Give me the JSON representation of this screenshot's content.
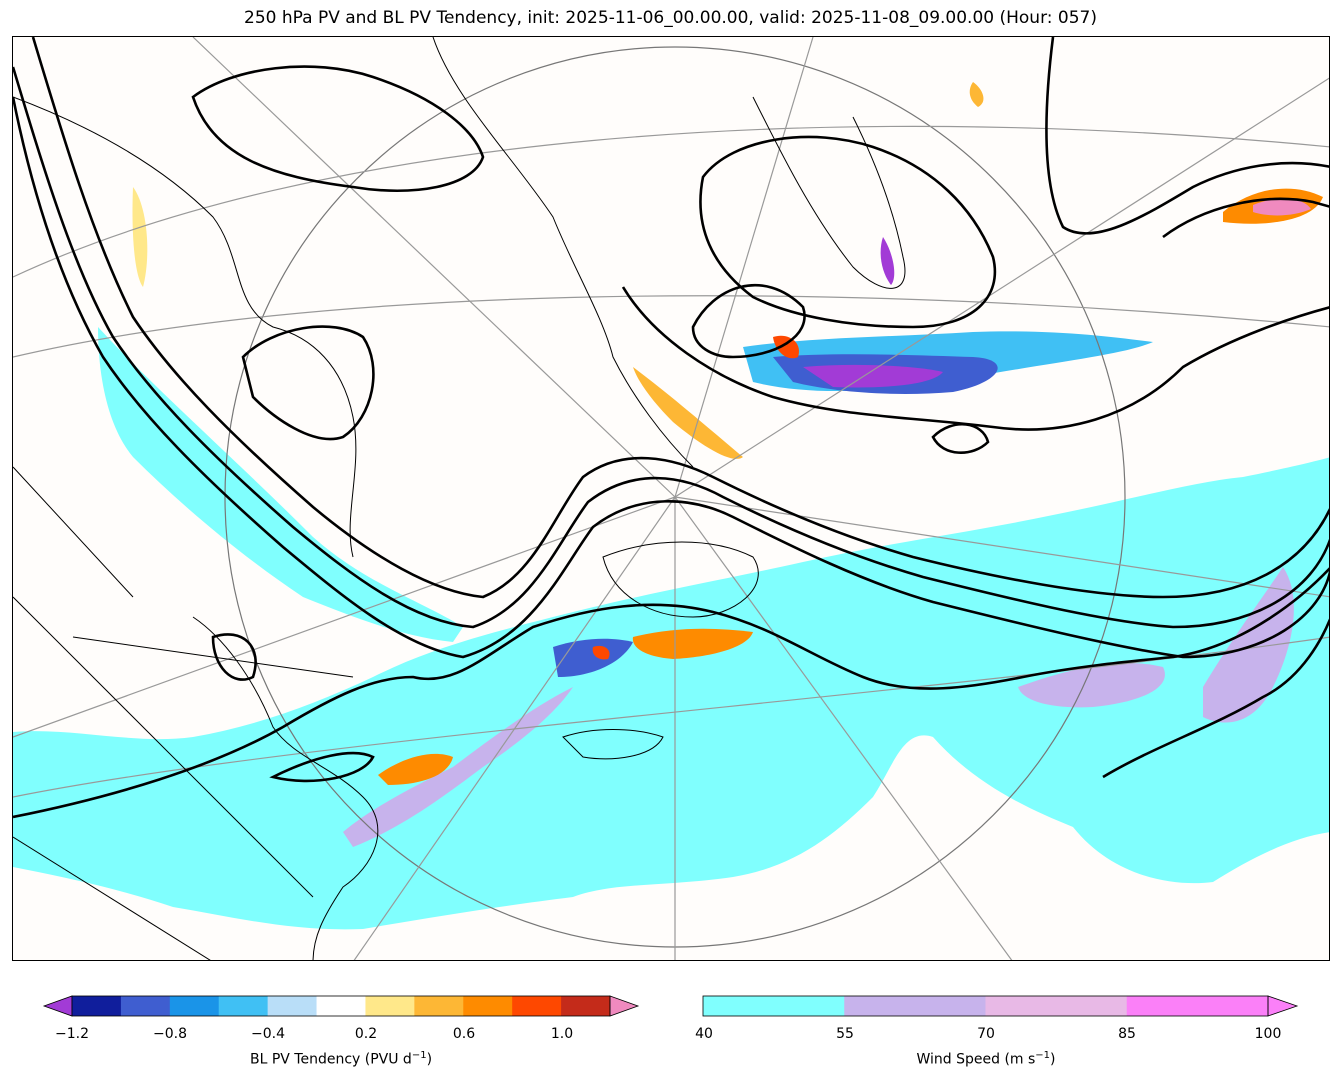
{
  "title": "250 hPa PV and BL PV Tendency, init: 2025-11-06_00.00.00, valid: 2025-11-08_09.00.00 (Hour: 057)",
  "pv_colorbar": {
    "label": "BL PV Tendency (PVU d",
    "label_exp": "−1",
    "label_end": ")",
    "ticks": [
      "−1.2",
      "−0.8",
      "−0.4",
      "0.2",
      "0.6",
      "1.0"
    ],
    "colors": [
      "#a23bd6",
      "#101e9c",
      "#3f5ed0",
      "#1a94e8",
      "#40c0f4",
      "#b9def8",
      "#ffffff",
      "#ffe88a",
      "#fdb735",
      "#fe8b00",
      "#fe4800",
      "#c42b1a",
      "#f08abf"
    ]
  },
  "wind_colorbar": {
    "label": "Wind Speed (m s",
    "label_exp": "−1",
    "label_end": ")",
    "ticks": [
      "40",
      "55",
      "70",
      "85",
      "100"
    ],
    "colors": [
      "#80fffe",
      "#c7b3ec",
      "#e8b9e6",
      "#fb80f8"
    ]
  }
}
